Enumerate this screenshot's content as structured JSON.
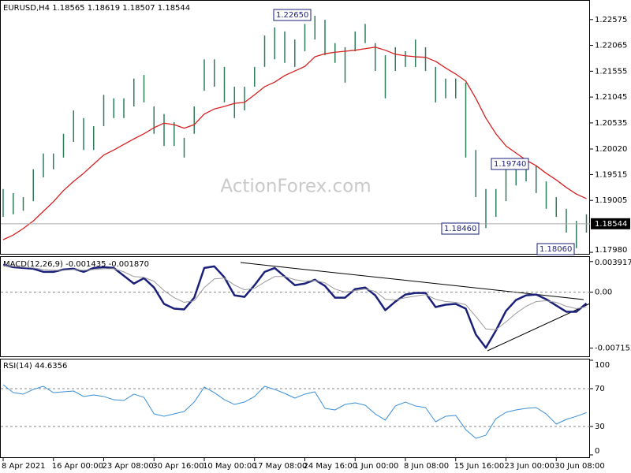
{
  "chart_data": [
    {
      "type": "ohlc",
      "title": "EURUSD,H4  1.18565 1.18619 1.18507 1.18544",
      "watermark": "ActionForex.com",
      "color": "#2e7d5a",
      "high": [
        1.1923,
        1.1915,
        1.1907,
        1.1962,
        1.1993,
        1.1993,
        1.2032,
        1.2078,
        1.2063,
        1.2047,
        1.2109,
        1.2102,
        1.2102,
        1.2141,
        1.2148,
        1.2086,
        1.2071,
        1.2055,
        1.2024,
        1.2086,
        1.2179,
        1.2179,
        1.2164,
        1.2125,
        1.2125,
        1.2164,
        1.2226,
        1.2242,
        1.2234,
        1.2218,
        1.2249,
        1.2265,
        1.2257,
        1.2211,
        1.2203,
        1.2234,
        1.2249,
        1.2211,
        1.2187,
        1.2203,
        1.2195,
        1.2218,
        1.2203,
        1.2164,
        1.2141,
        1.2141,
        1.2133,
        1.2,
        1.1923,
        1.1923,
        1.1962,
        1.1969,
        1.1974,
        1.1969,
        1.1938,
        1.1907,
        1.1884,
        1.186,
        1.1873
      ],
      "low": [
        1.1868,
        1.1873,
        1.188,
        1.1899,
        1.1946,
        1.1962,
        1.1985,
        1.2016,
        1.2,
        1.2,
        1.2047,
        1.2063,
        1.2063,
        1.2086,
        1.2094,
        1.2032,
        1.2008,
        1.2008,
        1.1985,
        1.2032,
        1.2117,
        1.2125,
        1.2094,
        1.2063,
        1.2078,
        1.2125,
        1.2164,
        1.2179,
        1.2172,
        1.2164,
        1.2195,
        1.2218,
        1.2187,
        1.2172,
        1.2133,
        1.2195,
        1.2211,
        1.2156,
        1.2102,
        1.2156,
        1.2164,
        1.2164,
        1.2156,
        1.2094,
        1.2102,
        1.2102,
        1.1985,
        1.1907,
        1.1846,
        1.1868,
        1.1899,
        1.193,
        1.1938,
        1.1915,
        1.1884,
        1.1868,
        1.1837,
        1.1806,
        1.1837
      ],
      "overlays": [
        {
          "color": "#d62020",
          "values": [
            1.1823,
            1.1832,
            1.1845,
            1.186,
            1.1879,
            1.1898,
            1.192,
            1.1938,
            1.1954,
            1.1972,
            1.199,
            1.2,
            1.2011,
            1.2022,
            1.2032,
            1.2044,
            1.2053,
            1.205,
            1.2043,
            1.205,
            1.2071,
            1.2081,
            1.2086,
            1.2092,
            1.2094,
            1.2109,
            1.2125,
            1.2134,
            1.2147,
            1.2156,
            1.2165,
            1.2184,
            1.219,
            1.2193,
            1.2195,
            1.2197,
            1.22,
            1.2203,
            1.2197,
            1.2189,
            1.2186,
            1.2184,
            1.2183,
            1.2175,
            1.2162,
            1.215,
            1.2136,
            1.2102,
            1.2063,
            1.2032,
            1.2008,
            1.1994,
            1.198,
            1.1969,
            1.1954,
            1.1941,
            1.1926,
            1.1913,
            1.1904
          ]
        }
      ],
      "current_price": 1.18544,
      "annotations": [
        {
          "text": "1.22650"
        },
        {
          "text": "1.19740"
        },
        {
          "text": "1.18460"
        },
        {
          "text": "1.18060"
        }
      ],
      "ylim": [
        1.1795,
        1.2293
      ],
      "yticks": [
        1.22575,
        1.22065,
        1.21555,
        1.21045,
        1.20535,
        {
          "value": 1.2002,
          "label": "1.20020"
        },
        1.19515,
        1.19005,
        {
          "value": 1.1798,
          "label": "1.17980"
        }
      ]
    },
    {
      "type": "line",
      "title": "MACD(12,26,9) -0.001435 -0.001870",
      "series": [
        {
          "color": "#1a1f7a",
          "values": [
            0.0035,
            0.0032,
            0.0031,
            0.003,
            0.0026,
            0.0026,
            0.0029,
            0.003,
            0.0026,
            0.0031,
            0.0032,
            0.0031,
            0.0021,
            0.0011,
            0.0018,
            0.0006,
            -0.0015,
            -0.0021,
            -0.0022,
            -0.0007,
            0.0031,
            0.0033,
            0.0019,
            -0.0004,
            -0.0006,
            0.0009,
            0.0026,
            0.0031,
            0.002,
            0.0009,
            0.0011,
            0.0016,
            0.0008,
            -0.0007,
            -0.0007,
            0.0004,
            0.0006,
            -0.0004,
            -0.0023,
            -0.0012,
            -0.0003,
            -0.0001,
            -0.0001,
            -0.0019,
            -0.0016,
            -0.0015,
            -0.0021,
            -0.0054,
            -0.0071,
            -0.0049,
            -0.0024,
            -0.001,
            -0.0004,
            -0.0003,
            -0.0009,
            -0.0017,
            -0.0025,
            -0.0025,
            -0.001435
          ]
        },
        {
          "color": "#9a9a9a",
          "values": [
            0.0034,
            0.0033,
            0.0032,
            0.0031,
            0.0029,
            0.0028,
            0.0028,
            0.0029,
            0.0028,
            0.0029,
            0.003,
            0.003,
            0.0026,
            0.002,
            0.0019,
            0.0014,
            0.0002,
            -0.0007,
            -0.0013,
            -0.0011,
            0.0006,
            0.0017,
            0.0018,
            0.0009,
            0.0003,
            0.0005,
            0.0013,
            0.002,
            0.002,
            0.0016,
            0.0014,
            0.0015,
            0.0012,
            0.0004,
            0,
            0.0002,
            0.0004,
            0.0001,
            -0.0009,
            -0.001,
            -0.0007,
            -0.0005,
            -0.0003,
            -0.0009,
            -0.0012,
            -0.0013,
            -0.0016,
            -0.0031,
            -0.0047,
            -0.0048,
            -0.0038,
            -0.0027,
            -0.0018,
            -0.0012,
            -0.0011,
            -0.0013,
            -0.0018,
            -0.0021,
            -0.00187
          ]
        }
      ],
      "levels": [
        0
      ],
      "ylim": [
        -0.0081,
        0.0044
      ],
      "yticks": [
        0.003917,
        {
          "value": 0,
          "label": "0.00"
        },
        -0.007152
      ]
    },
    {
      "type": "line",
      "title": "RSI(14) 44.6356",
      "series": [
        {
          "color": "#3a8fd8",
          "values": [
            74.2,
            65.8,
            64.2,
            69.2,
            72.5,
            65.8,
            66.7,
            67.5,
            61.7,
            63.3,
            61.7,
            58.3,
            57.5,
            64.2,
            60.8,
            43.3,
            40.8,
            43.3,
            45.8,
            55.8,
            71.7,
            65.8,
            58.3,
            53.3,
            55.8,
            61.7,
            72.5,
            69.2,
            65.0,
            60.0,
            64.2,
            66.7,
            49.2,
            47.5,
            53.3,
            55.0,
            52.5,
            43.3,
            36.7,
            51.7,
            55.8,
            51.7,
            50.0,
            35.0,
            40.8,
            41.7,
            26.7,
            17.5,
            20.8,
            38.3,
            45.0,
            47.5,
            49.2,
            50.0,
            43.3,
            32.5,
            37.5,
            40.8,
            44.6356
          ]
        }
      ],
      "levels": [
        70,
        30
      ],
      "ylim": [
        0,
        100
      ],
      "yticks": [
        100,
        70,
        30,
        0
      ],
      "xticks": [
        {
          "value": 0,
          "label": "8 Apr 2021"
        },
        {
          "value": 5,
          "label": "16 Apr 00:00"
        },
        {
          "value": 10,
          "label": "23 Apr 08:00"
        },
        {
          "value": 15,
          "label": "30 Apr 16:00"
        },
        {
          "value": 20,
          "label": "10 May 00:00"
        },
        {
          "value": 25,
          "label": "17 May 08:00"
        },
        {
          "value": 30,
          "label": "24 May 16:00"
        },
        {
          "value": 35,
          "label": "1 Jun 00:00"
        },
        {
          "value": 40,
          "label": "8 Jun 08:00"
        },
        {
          "value": 45,
          "label": "15 Jun 16:00"
        },
        {
          "value": 50,
          "label": "23 Jun 00:00"
        },
        {
          "value": 55,
          "label": "30 Jun 08:00"
        }
      ]
    }
  ]
}
